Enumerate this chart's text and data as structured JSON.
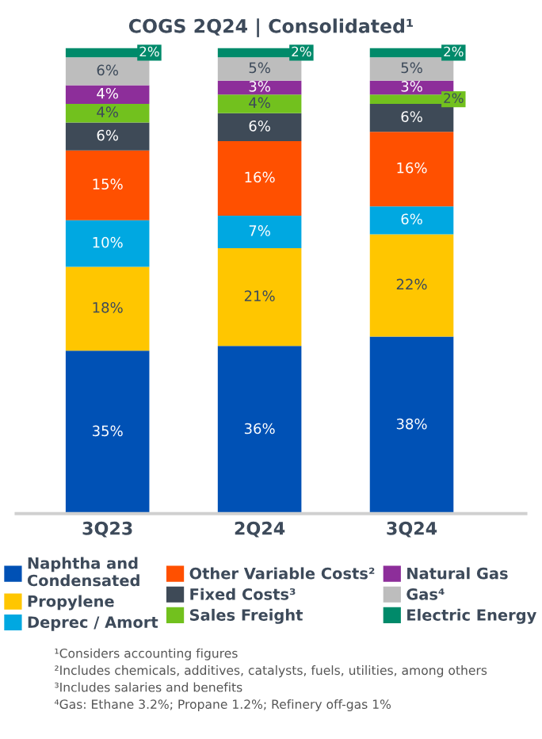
{
  "chart_data": {
    "type": "bar",
    "stacked": true,
    "legend": "bottom",
    "title": "COGS 2Q24 | Consolidated¹",
    "categories": [
      "3Q23",
      "2Q24",
      "3Q24"
    ],
    "series": [
      {
        "name": "Naphtha and\nCondensated",
        "color": "#0051b5",
        "values": [
          35,
          36,
          38
        ],
        "value_labels": [
          "35%",
          "36%",
          "38%"
        ]
      },
      {
        "name": "Propylene",
        "color": "#ffc600",
        "values": [
          18,
          21,
          22
        ],
        "value_labels": [
          "18%",
          "21%",
          "22%"
        ]
      },
      {
        "name": "Deprec / Amort",
        "color": "#00a8e1",
        "values": [
          10,
          7,
          6
        ],
        "value_labels": [
          "10%",
          "7%",
          "6%"
        ]
      },
      {
        "name": "Other Variable Costs²",
        "color": "#ff5000",
        "values": [
          15,
          16,
          16
        ],
        "value_labels": [
          "15%",
          "16%",
          "16%"
        ]
      },
      {
        "name": "Fixed Costs³",
        "color": "#3e4a57",
        "values": [
          6,
          6,
          6
        ],
        "value_labels": [
          "6%",
          "6%",
          "6%"
        ]
      },
      {
        "name": "Sales Freight",
        "color": "#72c11e",
        "values": [
          4,
          4,
          2
        ],
        "value_labels": [
          "4%",
          "4%",
          "2%"
        ]
      },
      {
        "name": "Natural Gas",
        "color": "#8d2e9a",
        "values": [
          4,
          3,
          3
        ],
        "value_labels": [
          "4%",
          "3%",
          "3%"
        ]
      },
      {
        "name": "Gas⁴",
        "color": "#bdbdbd",
        "values": [
          6,
          5,
          5
        ],
        "value_labels": [
          "6%",
          "5%",
          "5%"
        ]
      },
      {
        "name": "Electric Energy",
        "color": "#008a6a",
        "values": [
          2,
          2,
          2
        ],
        "value_labels": [
          "2%",
          "2%",
          "2%"
        ]
      }
    ],
    "annotations": [
      "¹Considers accounting figures",
      "²Includes chemicals, additives, catalysts, fuels, utilities, among others",
      "³Includes salaries and benefits",
      "⁴Gas: Ethane 3.2%; Propane 1.2%; Refinery off-gas 1%"
    ]
  }
}
